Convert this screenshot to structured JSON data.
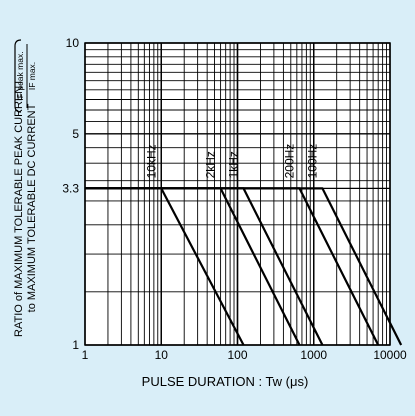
{
  "colors": {
    "background": "#d9eef8",
    "plot_background": "#ffffff",
    "grid": "#000000",
    "line": "#000000",
    "text": "#000000"
  },
  "labels": {
    "ylabel_main": "RATIO of MAXIMUM TOLERABLE PEAK CURRENT",
    "ylabel_sub": "to MAXIMUM TOLERABLE DC CURRENT",
    "ratio_num": "IF peak max.",
    "ratio_den": "IF max.",
    "xlabel": "PULSE DURATION : Tw (μs)"
  },
  "chart_data": {
    "type": "line",
    "xscale": "log",
    "yscale": "log",
    "xlim": [
      1,
      10000
    ],
    "ylim": [
      1,
      10
    ],
    "grid": true,
    "xlabel": "PULSE DURATION : Tw (μs)",
    "ylabel": "RATIO of MAXIMUM TOLERABLE PEAK CURRENT to MAXIMUM TOLERABLE DC CURRENT",
    "x_ticks": [
      {
        "value": 1,
        "label": "1"
      },
      {
        "value": 10,
        "label": "10"
      },
      {
        "value": 100,
        "label": "100"
      },
      {
        "value": 1000,
        "label": "1000"
      },
      {
        "value": 10000,
        "label": "10000"
      }
    ],
    "y_ticks": [
      {
        "value": 1,
        "label": "1"
      },
      {
        "value": 3.3,
        "label": "3.3"
      },
      {
        "value": 5,
        "label": "5"
      },
      {
        "value": 10,
        "label": "10"
      }
    ],
    "series": [
      {
        "name": "10kHz",
        "x": [
          1,
          10,
          120
        ],
        "y": [
          3.3,
          3.3,
          1.0
        ]
      },
      {
        "name": "2kHz",
        "x": [
          1,
          60,
          650
        ],
        "y": [
          3.3,
          3.3,
          1.0
        ]
      },
      {
        "name": "1kHz",
        "x": [
          1,
          120,
          1300
        ],
        "y": [
          3.3,
          3.3,
          1.0
        ]
      },
      {
        "name": "200Hz",
        "x": [
          1,
          650,
          7000
        ],
        "y": [
          3.3,
          3.3,
          1.0
        ]
      },
      {
        "name": "100Hz",
        "x": [
          1,
          1300,
          14000
        ],
        "y": [
          3.3,
          3.3,
          1.0
        ]
      }
    ]
  }
}
